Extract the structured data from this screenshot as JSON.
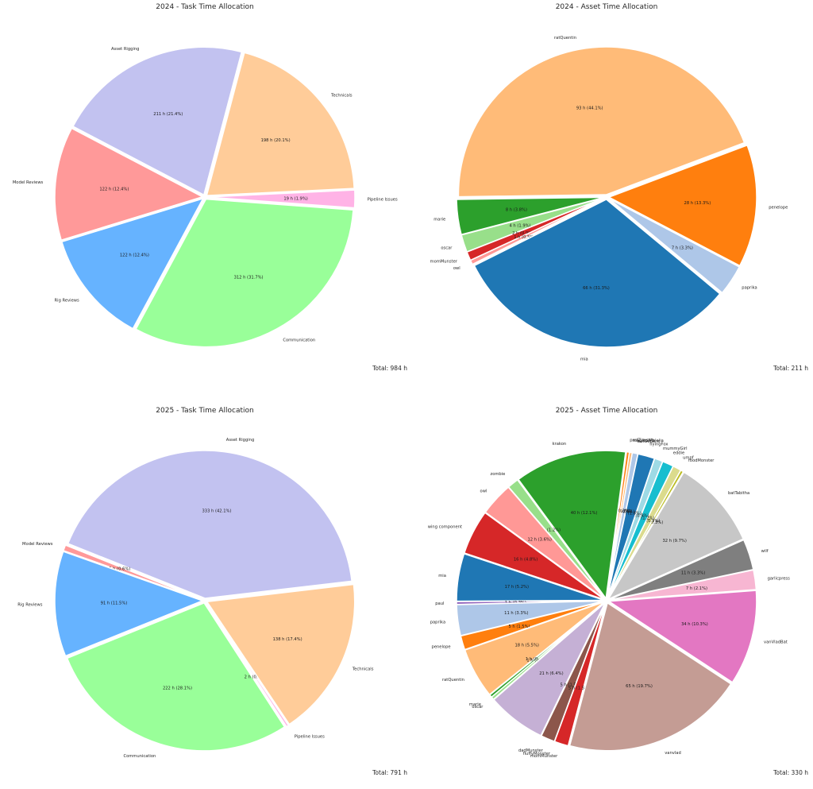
{
  "chart_data": [
    {
      "type": "pie",
      "title": "2024 - Task Time Allocation",
      "total_label": "Total: 984 h",
      "start_angle_deg": -4.2,
      "slices": [
        {
          "label": "Pipeline Issues",
          "value": 19,
          "value_label": "19 h (1.9%)",
          "color": "#ffb3e6"
        },
        {
          "label": "Technicals",
          "value": 198,
          "value_label": "198 h (20.1%)",
          "color": "#ffcc99"
        },
        {
          "label": "Asset Rigging",
          "value": 211,
          "value_label": "211 h (21.4%)",
          "color": "#c2c2f0"
        },
        {
          "label": "Model Reviews",
          "value": 122,
          "value_label": "122 h (12.4%)",
          "color": "#ff9999"
        },
        {
          "label": "Rig Reviews",
          "value": 122,
          "value_label": "122 h (12.4%)",
          "color": "#66b3ff"
        },
        {
          "label": "Communication",
          "value": 312,
          "value_label": "312 h (31.7%)",
          "color": "#99ff99"
        }
      ]
    },
    {
      "type": "pie",
      "title": "2024 - Asset Time Allocation",
      "total_label": "Total: 211 h",
      "start_angle_deg": 20.6,
      "slices": [
        {
          "label": "ratQuentin",
          "value": 93,
          "value_label": "93 h (44.1%)",
          "color": "#ffbb78"
        },
        {
          "label": "marie",
          "value": 8,
          "value_label": "8 h (3.8%)",
          "color": "#2ca02c"
        },
        {
          "label": "oscar",
          "value": 4,
          "value_label": "4 h (1.9%)",
          "color": "#98df8a"
        },
        {
          "label": "momMunster",
          "value": 2,
          "value_label": "2 h (0.9%)",
          "color": "#d62728"
        },
        {
          "label": "owl",
          "value": 1,
          "value_label": "1 h (0.5%)",
          "color": "#ff9896"
        },
        {
          "label": "mia",
          "value": 66,
          "value_label": "66 h (31.3%)",
          "color": "#1f77b4"
        },
        {
          "label": "paprika",
          "value": 7,
          "value_label": "7 h (3.3%)",
          "color": "#aec7e8"
        },
        {
          "label": "penelope",
          "value": 28,
          "value_label": "28 h (13.3%)",
          "color": "#ff7f0e"
        }
      ]
    },
    {
      "type": "pie",
      "title": "2025 - Task Time Allocation",
      "total_label": "Total: 791 h",
      "start_angle_deg": 6.7,
      "slices": [
        {
          "label": "Asset Rigging",
          "value": 333,
          "value_label": "333 h (42.1%)",
          "color": "#c2c2f0"
        },
        {
          "label": "Model Reviews",
          "value": 5,
          "value_label": "5 h (0.6%)",
          "color": "#ff9999"
        },
        {
          "label": "Rig Reviews",
          "value": 91,
          "value_label": "91 h (11.5%)",
          "color": "#66b3ff"
        },
        {
          "label": "Communication",
          "value": 222,
          "value_label": "222 h (28.1%)",
          "color": "#99ff99"
        },
        {
          "label": "Pipeline Issues",
          "value": 2,
          "value_label": "2 h (0.3%)",
          "color": "#ffb3e6"
        },
        {
          "label": "Technicals",
          "value": 138,
          "value_label": "138 h (17.4%)",
          "color": "#ffcc99"
        }
      ]
    },
    {
      "type": "pie",
      "title": "2025 - Asset Time Allocation",
      "total_label": "Total: 330 h",
      "start_angle_deg": 24,
      "slices": [
        {
          "label": "batTabitha",
          "value": 32,
          "value_label": "32 h (9.7%)",
          "color": "#c7c7c7"
        },
        {
          "label": "foodMonster",
          "value": 1,
          "value_label": "1 h (0.3%)",
          "color": "#bcbd22"
        },
        {
          "label": "umpf",
          "value": 3,
          "value_label": "3 h (0.9%)",
          "color": "#dbdb8d"
        },
        {
          "label": "eddie",
          "value": 4,
          "value_label": "4 h (1.2%)",
          "color": "#17becf"
        },
        {
          "label": "mummyGirl",
          "value": 3,
          "value_label": "3 h (0.9%)",
          "color": "#9edae5"
        },
        {
          "label": "flyingFox",
          "value": 6,
          "value_label": "6 h (1.8%)",
          "color": "#1f77b4"
        },
        {
          "label": "batGeneric",
          "value": 2,
          "value_label": "2 h (0.6%)",
          "color": "#aec7e8"
        },
        {
          "label": "magicalMalalia",
          "value": 1,
          "value_label": "1 h (0.3%)",
          "color": "#ffbb78"
        },
        {
          "label": "profZimsala",
          "value": 1,
          "value_label": "1 h (0.3%)",
          "color": "#ff7f0e"
        },
        {
          "label": "krakon",
          "value": 40,
          "value_label": "40 h (12.1%)",
          "color": "#2ca02c"
        },
        {
          "label": "zombie",
          "value": 4,
          "value_label": "4 h (1.2%)",
          "color": "#98df8a"
        },
        {
          "label": "owl",
          "value": 12,
          "value_label": "12 h (3.6%)",
          "color": "#ff9896"
        },
        {
          "label": "wing component",
          "value": 16,
          "value_label": "16 h (4.8%)",
          "color": "#d62728"
        },
        {
          "label": "mia",
          "value": 17,
          "value_label": "17 h (5.2%)",
          "color": "#1f77b4"
        },
        {
          "label": "paul",
          "value": 1,
          "value_label": "1 h (0.3%)",
          "color": "#9467bd"
        },
        {
          "label": "paprika",
          "value": 11,
          "value_label": "11 h (3.3%)",
          "color": "#aec7e8"
        },
        {
          "label": "penelope",
          "value": 5,
          "value_label": "5 h (1.5%)",
          "color": "#ff7f0e"
        },
        {
          "label": "ratQuentin",
          "value": 18,
          "value_label": "18 h (5.5%)",
          "color": "#ffbb78"
        },
        {
          "label": "marie",
          "value": 1,
          "value_label": "1 h (0.3%)",
          "color": "#2ca02c"
        },
        {
          "label": "oscar",
          "value": 1,
          "value_label": "1 h (0.3%)",
          "color": "#98df8a"
        },
        {
          "label": "",
          "value": 21,
          "value_label": "21 h (6.4%)",
          "color": "#c5b0d5"
        },
        {
          "label": "dadMunster",
          "value": 5,
          "value_label": "5 h (1.5%)",
          "color": "#8c564b"
        },
        {
          "label": "fluffyMonster",
          "value": 0,
          "value_label": "",
          "color": "#ffffff"
        },
        {
          "label": "momMunster",
          "value": 5,
          "value_label": "5 h (1.5%)",
          "color": "#d62728"
        },
        {
          "label": "vanvlad",
          "value": 65,
          "value_label": "65 h (19.7%)",
          "color": "#c49c94"
        },
        {
          "label": "vanVladBat",
          "value": 34,
          "value_label": "34 h (10.3%)",
          "color": "#e377c2"
        },
        {
          "label": "garlicpress",
          "value": 7,
          "value_label": "7 h (2.1%)",
          "color": "#f7b6d2"
        },
        {
          "label": "wilf",
          "value": 11,
          "value_label": "11 h (3.3%)",
          "color": "#7f7f7f"
        }
      ]
    }
  ]
}
